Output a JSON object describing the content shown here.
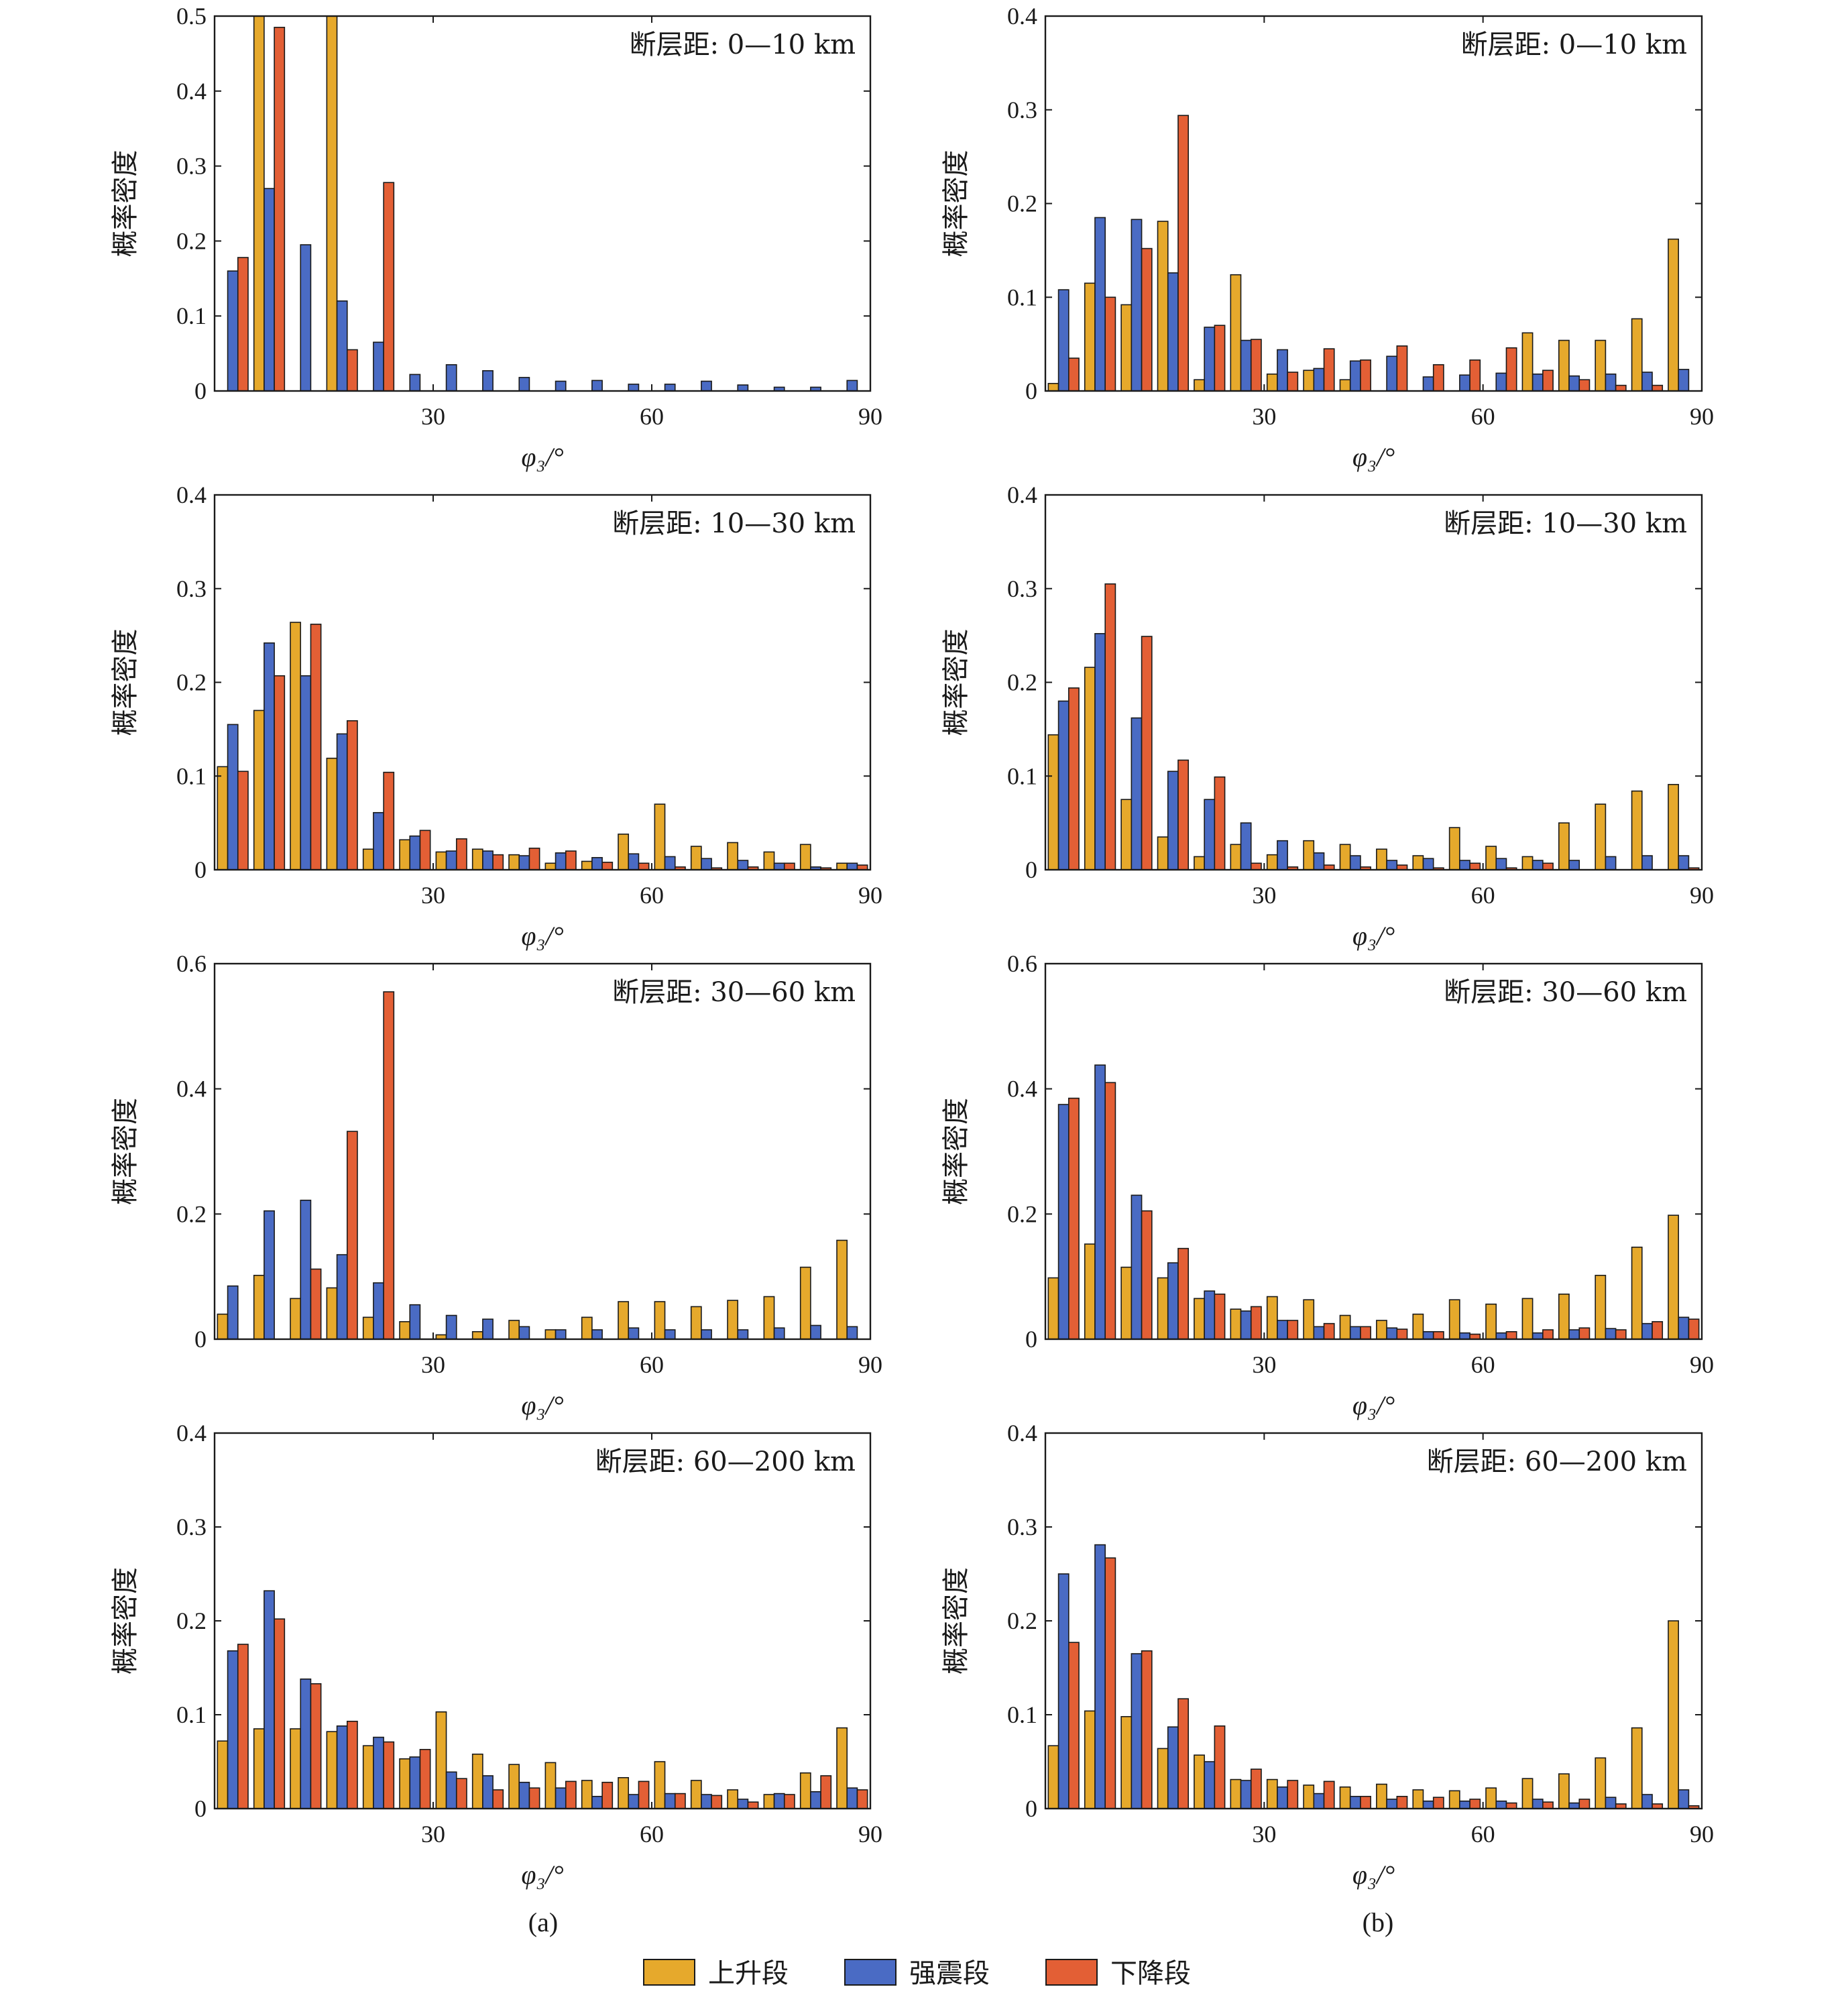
{
  "legend": [
    {
      "label": "上升段",
      "color": "#E6A92C"
    },
    {
      "label": "强震段",
      "color": "#4A6BC4"
    },
    {
      "label": "下降段",
      "color": "#E35F35"
    }
  ],
  "captions": {
    "a": "(a)",
    "b": "(b)"
  },
  "chart_data": [
    {
      "type": "bar",
      "column": "a",
      "title": "断层距: 0—10 km",
      "ylabel": "概率密度",
      "xlabel": "φ₃/°",
      "xlim": [
        0,
        90
      ],
      "ylim": [
        0,
        0.5
      ],
      "yticks": [
        0,
        0.1,
        0.2,
        0.3,
        0.4,
        0.5
      ],
      "xticks": [
        30,
        60,
        90
      ],
      "categories": [
        "0-5",
        "5-10",
        "10-15",
        "15-20",
        "20-25",
        "25-30",
        "30-35",
        "35-40",
        "40-45",
        "45-50",
        "50-55",
        "55-60",
        "60-65",
        "65-70",
        "70-75",
        "75-80",
        "80-85",
        "85-90"
      ],
      "series": [
        {
          "name": "上升段",
          "values": [
            0,
            0.5,
            0,
            0.5,
            0,
            0,
            0,
            0,
            0,
            0,
            0,
            0,
            0,
            0,
            0,
            0,
            0,
            0
          ]
        },
        {
          "name": "强震段",
          "values": [
            0.16,
            0.27,
            0.195,
            0.12,
            0.065,
            0.022,
            0.035,
            0.027,
            0.018,
            0.013,
            0.014,
            0.009,
            0.009,
            0.013,
            0.008,
            0.005,
            0.005,
            0.014
          ]
        },
        {
          "name": "下降段",
          "values": [
            0.178,
            0.485,
            0,
            0.055,
            0.278,
            0,
            0,
            0,
            0,
            0,
            0,
            0,
            0,
            0,
            0,
            0,
            0,
            0
          ]
        }
      ]
    },
    {
      "type": "bar",
      "column": "b",
      "title": "断层距: 0—10 km",
      "ylabel": "概率密度",
      "xlabel": "φ₃/°",
      "xlim": [
        0,
        90
      ],
      "ylim": [
        0,
        0.4
      ],
      "yticks": [
        0,
        0.1,
        0.2,
        0.3,
        0.4
      ],
      "xticks": [
        30,
        60,
        90
      ],
      "categories": [
        "0-5",
        "5-10",
        "10-15",
        "15-20",
        "20-25",
        "25-30",
        "30-35",
        "35-40",
        "40-45",
        "45-50",
        "50-55",
        "55-60",
        "60-65",
        "65-70",
        "70-75",
        "75-80",
        "80-85",
        "85-90"
      ],
      "series": [
        {
          "name": "上升段",
          "values": [
            0.008,
            0.115,
            0.092,
            0.181,
            0.012,
            0.124,
            0.018,
            0.022,
            0.012,
            0,
            0,
            0,
            0,
            0.062,
            0.054,
            0.054,
            0.077,
            0.162
          ]
        },
        {
          "name": "强震段",
          "values": [
            0.108,
            0.185,
            0.183,
            0.126,
            0.068,
            0.054,
            0.044,
            0.024,
            0.032,
            0.037,
            0.015,
            0.017,
            0.019,
            0.018,
            0.016,
            0.018,
            0.02,
            0.023
          ]
        },
        {
          "name": "下降段",
          "values": [
            0.035,
            0.1,
            0.152,
            0.294,
            0.07,
            0.055,
            0.02,
            0.045,
            0.033,
            0.048,
            0.028,
            0.033,
            0.046,
            0.022,
            0.012,
            0.006,
            0.006,
            0
          ]
        }
      ]
    },
    {
      "type": "bar",
      "column": "a",
      "title": "断层距: 10—30 km",
      "ylabel": "概率密度",
      "xlabel": "φ₃/°",
      "xlim": [
        0,
        90
      ],
      "ylim": [
        0,
        0.4
      ],
      "yticks": [
        0,
        0.1,
        0.2,
        0.3,
        0.4
      ],
      "xticks": [
        30,
        60,
        90
      ],
      "categories": [
        "0-5",
        "5-10",
        "10-15",
        "15-20",
        "20-25",
        "25-30",
        "30-35",
        "35-40",
        "40-45",
        "45-50",
        "50-55",
        "55-60",
        "60-65",
        "65-70",
        "70-75",
        "75-80",
        "80-85",
        "85-90"
      ],
      "series": [
        {
          "name": "上升段",
          "values": [
            0.11,
            0.17,
            0.264,
            0.119,
            0.022,
            0.032,
            0.019,
            0.022,
            0.016,
            0.007,
            0.009,
            0.038,
            0.07,
            0.025,
            0.029,
            0.019,
            0.027,
            0.007
          ]
        },
        {
          "name": "强震段",
          "values": [
            0.155,
            0.242,
            0.207,
            0.145,
            0.061,
            0.036,
            0.02,
            0.02,
            0.015,
            0.018,
            0.013,
            0.017,
            0.014,
            0.012,
            0.01,
            0.007,
            0.003,
            0.007
          ]
        },
        {
          "name": "下降段",
          "values": [
            0.105,
            0.207,
            0.262,
            0.159,
            0.104,
            0.042,
            0.033,
            0.016,
            0.023,
            0.02,
            0.008,
            0.007,
            0.003,
            0.002,
            0.003,
            0.007,
            0.002,
            0.005
          ]
        }
      ]
    },
    {
      "type": "bar",
      "column": "b",
      "title": "断层距: 10—30 km",
      "ylabel": "概率密度",
      "xlabel": "φ₃/°",
      "xlim": [
        0,
        90
      ],
      "ylim": [
        0,
        0.4
      ],
      "yticks": [
        0,
        0.1,
        0.2,
        0.3,
        0.4
      ],
      "xticks": [
        30,
        60,
        90
      ],
      "categories": [
        "0-5",
        "5-10",
        "10-15",
        "15-20",
        "20-25",
        "25-30",
        "30-35",
        "35-40",
        "40-45",
        "45-50",
        "50-55",
        "55-60",
        "60-65",
        "65-70",
        "70-75",
        "75-80",
        "80-85",
        "85-90"
      ],
      "series": [
        {
          "name": "上升段",
          "values": [
            0.144,
            0.216,
            0.075,
            0.035,
            0.014,
            0.027,
            0.016,
            0.031,
            0.027,
            0.022,
            0.015,
            0.045,
            0.025,
            0.014,
            0.05,
            0.07,
            0.084,
            0.091
          ]
        },
        {
          "name": "强震段",
          "values": [
            0.18,
            0.252,
            0.162,
            0.105,
            0.075,
            0.05,
            0.031,
            0.018,
            0.015,
            0.01,
            0.012,
            0.01,
            0.012,
            0.01,
            0.01,
            0.014,
            0.015,
            0.015
          ]
        },
        {
          "name": "下降段",
          "values": [
            0.194,
            0.305,
            0.249,
            0.117,
            0.099,
            0.007,
            0.003,
            0.005,
            0.003,
            0.005,
            0.002,
            0.007,
            0.002,
            0.007,
            0,
            0,
            0,
            0.002
          ]
        }
      ]
    },
    {
      "type": "bar",
      "column": "a",
      "title": "断层距: 30—60 km",
      "ylabel": "概率密度",
      "xlabel": "φ₃/°",
      "xlim": [
        0,
        90
      ],
      "ylim": [
        0,
        0.6
      ],
      "yticks": [
        0,
        0.2,
        0.4,
        0.6
      ],
      "xticks": [
        30,
        60,
        90
      ],
      "categories": [
        "0-5",
        "5-10",
        "10-15",
        "15-20",
        "20-25",
        "25-30",
        "30-35",
        "35-40",
        "40-45",
        "45-50",
        "50-55",
        "55-60",
        "60-65",
        "65-70",
        "70-75",
        "75-80",
        "80-85",
        "85-90"
      ],
      "series": [
        {
          "name": "上升段",
          "values": [
            0.04,
            0.102,
            0.065,
            0.082,
            0.035,
            0.028,
            0.007,
            0.012,
            0.03,
            0.015,
            0.035,
            0.06,
            0.06,
            0.052,
            0.062,
            0.068,
            0.115,
            0.158
          ]
        },
        {
          "name": "强震段",
          "values": [
            0.085,
            0.205,
            0.222,
            0.135,
            0.09,
            0.055,
            0.038,
            0.032,
            0.02,
            0.015,
            0.015,
            0.018,
            0.015,
            0.015,
            0.015,
            0.018,
            0.022,
            0.02
          ]
        },
        {
          "name": "下降段",
          "values": [
            0,
            0,
            0.112,
            0.332,
            0.555,
            0,
            0,
            0,
            0,
            0,
            0,
            0,
            0,
            0,
            0,
            0,
            0,
            0
          ]
        }
      ]
    },
    {
      "type": "bar",
      "column": "b",
      "title": "断层距: 30—60 km",
      "ylabel": "概率密度",
      "xlabel": "φ₃/°",
      "xlim": [
        0,
        90
      ],
      "ylim": [
        0,
        0.6
      ],
      "yticks": [
        0,
        0.2,
        0.4,
        0.6
      ],
      "xticks": [
        30,
        60,
        90
      ],
      "categories": [
        "0-5",
        "5-10",
        "10-15",
        "15-20",
        "20-25",
        "25-30",
        "30-35",
        "35-40",
        "40-45",
        "45-50",
        "50-55",
        "55-60",
        "60-65",
        "65-70",
        "70-75",
        "75-80",
        "80-85",
        "85-90"
      ],
      "series": [
        {
          "name": "上升段",
          "values": [
            0.098,
            0.152,
            0.115,
            0.098,
            0.065,
            0.048,
            0.068,
            0.063,
            0.038,
            0.03,
            0.04,
            0.063,
            0.056,
            0.065,
            0.072,
            0.102,
            0.147,
            0.198
          ]
        },
        {
          "name": "强震段",
          "values": [
            0.375,
            0.438,
            0.23,
            0.122,
            0.077,
            0.045,
            0.03,
            0.02,
            0.02,
            0.018,
            0.012,
            0.01,
            0.01,
            0.01,
            0.015,
            0.017,
            0.025,
            0.035
          ]
        },
        {
          "name": "下降段",
          "values": [
            0.385,
            0.41,
            0.205,
            0.145,
            0.072,
            0.052,
            0.03,
            0.025,
            0.02,
            0.016,
            0.012,
            0.008,
            0.012,
            0.015,
            0.018,
            0.015,
            0.028,
            0.032
          ]
        }
      ]
    },
    {
      "type": "bar",
      "column": "a",
      "title": "断层距: 60—200 km",
      "ylabel": "概率密度",
      "xlabel": "φ₃/°",
      "xlim": [
        0,
        90
      ],
      "ylim": [
        0,
        0.4
      ],
      "yticks": [
        0,
        0.1,
        0.2,
        0.3,
        0.4
      ],
      "xticks": [
        30,
        60,
        90
      ],
      "categories": [
        "0-5",
        "5-10",
        "10-15",
        "15-20",
        "20-25",
        "25-30",
        "30-35",
        "35-40",
        "40-45",
        "45-50",
        "50-55",
        "55-60",
        "60-65",
        "65-70",
        "70-75",
        "75-80",
        "80-85",
        "85-90"
      ],
      "series": [
        {
          "name": "上升段",
          "values": [
            0.072,
            0.085,
            0.085,
            0.082,
            0.067,
            0.053,
            0.103,
            0.058,
            0.047,
            0.049,
            0.03,
            0.033,
            0.05,
            0.03,
            0.02,
            0.015,
            0.038,
            0.086
          ]
        },
        {
          "name": "强震段",
          "values": [
            0.168,
            0.232,
            0.138,
            0.088,
            0.076,
            0.055,
            0.039,
            0.035,
            0.028,
            0.022,
            0.013,
            0.015,
            0.016,
            0.015,
            0.01,
            0.016,
            0.018,
            0.022
          ]
        },
        {
          "name": "下降段",
          "values": [
            0.175,
            0.202,
            0.133,
            0.093,
            0.071,
            0.063,
            0.032,
            0.02,
            0.022,
            0.029,
            0.028,
            0.029,
            0.016,
            0.014,
            0.007,
            0.015,
            0.035,
            0.02
          ]
        }
      ]
    },
    {
      "type": "bar",
      "column": "b",
      "title": "断层距: 60—200 km",
      "ylabel": "概率密度",
      "xlabel": "φ₃/°",
      "xlim": [
        0,
        90
      ],
      "ylim": [
        0,
        0.4
      ],
      "yticks": [
        0,
        0.1,
        0.2,
        0.3,
        0.4
      ],
      "xticks": [
        30,
        60,
        90
      ],
      "categories": [
        "0-5",
        "5-10",
        "10-15",
        "15-20",
        "20-25",
        "25-30",
        "30-35",
        "35-40",
        "40-45",
        "45-50",
        "50-55",
        "55-60",
        "60-65",
        "65-70",
        "70-75",
        "75-80",
        "80-85",
        "85-90"
      ],
      "series": [
        {
          "name": "上升段",
          "values": [
            0.067,
            0.104,
            0.098,
            0.064,
            0.057,
            0.031,
            0.031,
            0.025,
            0.023,
            0.026,
            0.02,
            0.019,
            0.022,
            0.032,
            0.037,
            0.054,
            0.086,
            0.2
          ]
        },
        {
          "name": "强震段",
          "values": [
            0.25,
            0.281,
            0.165,
            0.087,
            0.05,
            0.03,
            0.023,
            0.016,
            0.013,
            0.01,
            0.008,
            0.008,
            0.008,
            0.01,
            0.006,
            0.012,
            0.015,
            0.02
          ]
        },
        {
          "name": "下降段",
          "values": [
            0.177,
            0.267,
            0.168,
            0.117,
            0.088,
            0.042,
            0.03,
            0.029,
            0.013,
            0.013,
            0.012,
            0.01,
            0.006,
            0.007,
            0.01,
            0.005,
            0.005,
            0.003
          ]
        }
      ]
    }
  ]
}
